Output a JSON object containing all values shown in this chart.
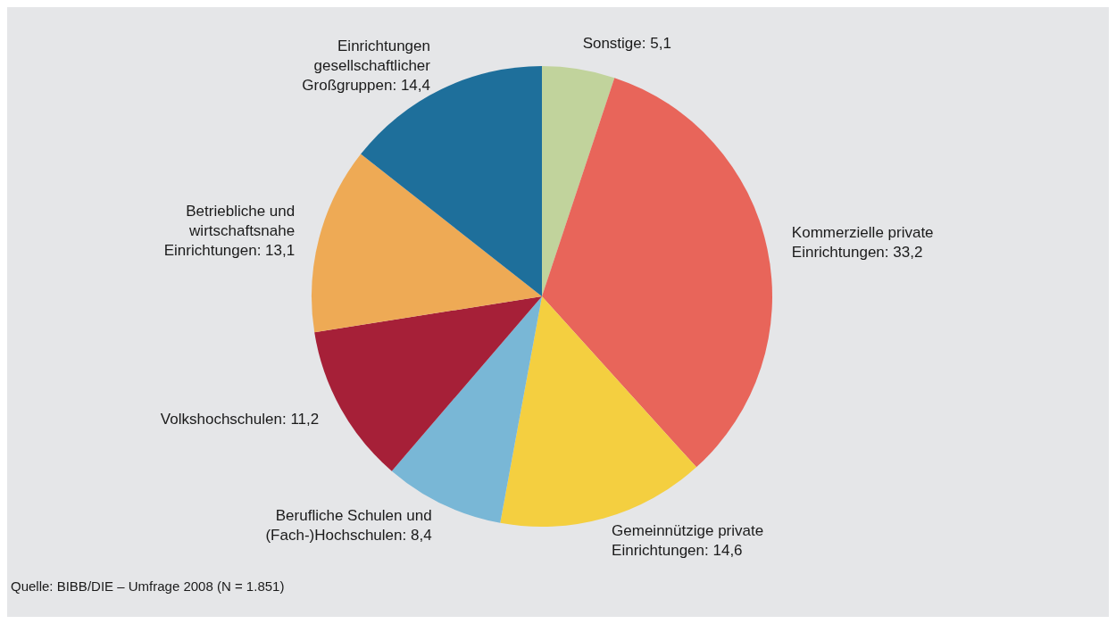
{
  "chart_data": {
    "type": "pie",
    "categories": [
      "Sonstige",
      "Kommerzielle private Einrichtungen",
      "Gemeinnützige private Einrichtungen",
      "Berufliche Schulen und (Fach-)Hochschulen",
      "Volkshochschulen",
      "Betriebliche und wirtschaftsnahe Einrichtungen",
      "Einrichtungen gesellschaftlicher Großgruppen"
    ],
    "values": [
      5.1,
      33.2,
      14.6,
      8.4,
      11.2,
      13.1,
      14.4
    ],
    "colors": [
      "#c1d39c",
      "#e8655a",
      "#f4cf40",
      "#79b7d6",
      "#a62038",
      "#eeaa55",
      "#1e6f9b"
    ],
    "value_labels": [
      "5,1",
      "33,2",
      "14,6",
      "8,4",
      "11,2",
      "13,1",
      "14,4"
    ],
    "annotations": [
      "Quelle: BIBB/DIE – Umfrage 2008 (N = 1.851)"
    ]
  }
}
